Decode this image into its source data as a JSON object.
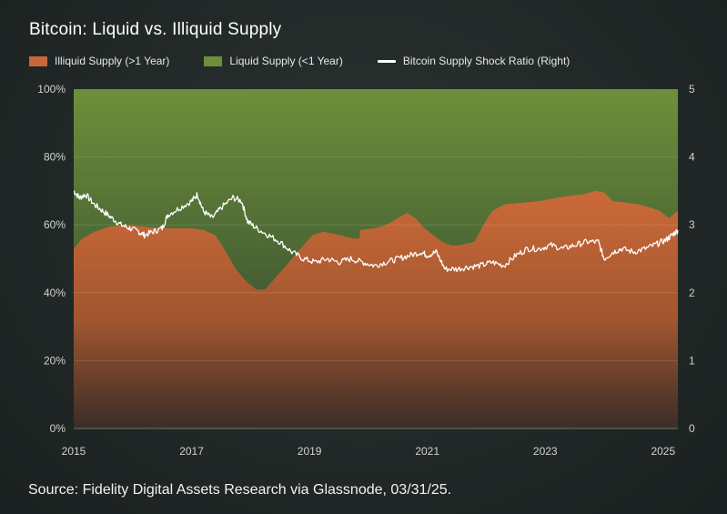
{
  "title": "Bitcoin: Liquid vs. Illiquid Supply",
  "source": "Source: Fidelity Digital Assets Research via Glassnode, 03/31/25.",
  "colors": {
    "illiquid": "#c8683a",
    "liquid": "#6e8f3a",
    "ratio": "#ffffff"
  },
  "chart_data": {
    "type": "area",
    "x_range": [
      2015.0,
      2025.25
    ],
    "x_ticks": [
      "2015",
      "2017",
      "2019",
      "2021",
      "2023",
      "2025"
    ],
    "y_left": {
      "range": [
        0,
        100
      ],
      "ticks": [
        "0%",
        "20%",
        "40%",
        "60%",
        "80%",
        "100%"
      ]
    },
    "y_right": {
      "range": [
        0,
        5
      ],
      "ticks": [
        "0",
        "1",
        "2",
        "3",
        "4",
        "5"
      ]
    },
    "grid": true,
    "legend_position": "top-left",
    "series": [
      {
        "name": "Illiquid Supply (>1 Year)",
        "kind": "stacked-area-bottom",
        "axis": "left",
        "points": [
          [
            2015.0,
            53
          ],
          [
            2015.15,
            56
          ],
          [
            2015.35,
            58
          ],
          [
            2015.6,
            59.5
          ],
          [
            2015.9,
            60
          ],
          [
            2016.2,
            59.5
          ],
          [
            2016.5,
            59
          ],
          [
            2016.8,
            59
          ],
          [
            2017.0,
            59
          ],
          [
            2017.2,
            58.5
          ],
          [
            2017.4,
            57
          ],
          [
            2017.55,
            53
          ],
          [
            2017.75,
            47
          ],
          [
            2017.95,
            43
          ],
          [
            2018.1,
            41
          ],
          [
            2018.25,
            41
          ],
          [
            2018.45,
            45
          ],
          [
            2018.65,
            49
          ],
          [
            2018.85,
            53
          ],
          [
            2019.05,
            57
          ],
          [
            2019.25,
            58
          ],
          [
            2019.5,
            57
          ],
          [
            2019.75,
            56
          ],
          [
            2019.85,
            56
          ],
          [
            2019.86,
            58.5
          ],
          [
            2020.1,
            59
          ],
          [
            2020.3,
            60
          ],
          [
            2020.5,
            62
          ],
          [
            2020.65,
            63.5
          ],
          [
            2020.8,
            62
          ],
          [
            2020.95,
            59
          ],
          [
            2021.1,
            57
          ],
          [
            2021.25,
            55
          ],
          [
            2021.4,
            54
          ],
          [
            2021.55,
            54
          ],
          [
            2021.8,
            55
          ],
          [
            2021.95,
            60
          ],
          [
            2022.1,
            64
          ],
          [
            2022.3,
            66
          ],
          [
            2022.6,
            66.5
          ],
          [
            2022.9,
            67
          ],
          [
            2023.2,
            68
          ],
          [
            2023.4,
            68.5
          ],
          [
            2023.65,
            69
          ],
          [
            2023.85,
            70
          ],
          [
            2024.0,
            69.5
          ],
          [
            2024.15,
            67
          ],
          [
            2024.4,
            66.5
          ],
          [
            2024.6,
            66
          ],
          [
            2024.8,
            65
          ],
          [
            2024.95,
            64
          ],
          [
            2025.1,
            62
          ],
          [
            2025.25,
            64
          ]
        ]
      },
      {
        "name": "Liquid Supply (<1 Year)",
        "kind": "stacked-area-top",
        "axis": "left",
        "note_top": 100
      },
      {
        "name": "Bitcoin Supply Shock Ratio (Right)",
        "kind": "line",
        "axis": "right",
        "points": [
          [
            2015.0,
            3.5
          ],
          [
            2015.1,
            3.4
          ],
          [
            2015.2,
            3.45
          ],
          [
            2015.35,
            3.3
          ],
          [
            2015.5,
            3.2
          ],
          [
            2015.65,
            3.1
          ],
          [
            2015.8,
            3.0
          ],
          [
            2015.95,
            2.95
          ],
          [
            2016.1,
            2.9
          ],
          [
            2016.2,
            2.85
          ],
          [
            2016.35,
            2.9
          ],
          [
            2016.5,
            2.95
          ],
          [
            2016.6,
            3.15
          ],
          [
            2016.8,
            3.25
          ],
          [
            2017.0,
            3.35
          ],
          [
            2017.1,
            3.45
          ],
          [
            2017.2,
            3.2
          ],
          [
            2017.35,
            3.1
          ],
          [
            2017.5,
            3.25
          ],
          [
            2017.7,
            3.4
          ],
          [
            2017.85,
            3.35
          ],
          [
            2017.95,
            3.05
          ],
          [
            2018.1,
            2.95
          ],
          [
            2018.3,
            2.85
          ],
          [
            2018.5,
            2.75
          ],
          [
            2018.7,
            2.6
          ],
          [
            2018.9,
            2.5
          ],
          [
            2019.1,
            2.45
          ],
          [
            2019.3,
            2.5
          ],
          [
            2019.5,
            2.45
          ],
          [
            2019.7,
            2.5
          ],
          [
            2019.9,
            2.45
          ],
          [
            2020.1,
            2.4
          ],
          [
            2020.3,
            2.45
          ],
          [
            2020.5,
            2.5
          ],
          [
            2020.7,
            2.55
          ],
          [
            2020.9,
            2.6
          ],
          [
            2021.0,
            2.55
          ],
          [
            2021.15,
            2.6
          ],
          [
            2021.3,
            2.35
          ],
          [
            2021.5,
            2.35
          ],
          [
            2021.7,
            2.38
          ],
          [
            2021.9,
            2.4
          ],
          [
            2022.1,
            2.45
          ],
          [
            2022.3,
            2.4
          ],
          [
            2022.5,
            2.55
          ],
          [
            2022.7,
            2.65
          ],
          [
            2022.9,
            2.65
          ],
          [
            2023.1,
            2.7
          ],
          [
            2023.3,
            2.65
          ],
          [
            2023.5,
            2.7
          ],
          [
            2023.7,
            2.75
          ],
          [
            2023.9,
            2.75
          ],
          [
            2024.0,
            2.5
          ],
          [
            2024.15,
            2.6
          ],
          [
            2024.3,
            2.65
          ],
          [
            2024.5,
            2.6
          ],
          [
            2024.7,
            2.65
          ],
          [
            2024.9,
            2.72
          ],
          [
            2025.05,
            2.78
          ],
          [
            2025.15,
            2.85
          ],
          [
            2025.25,
            2.92
          ]
        ]
      }
    ]
  }
}
